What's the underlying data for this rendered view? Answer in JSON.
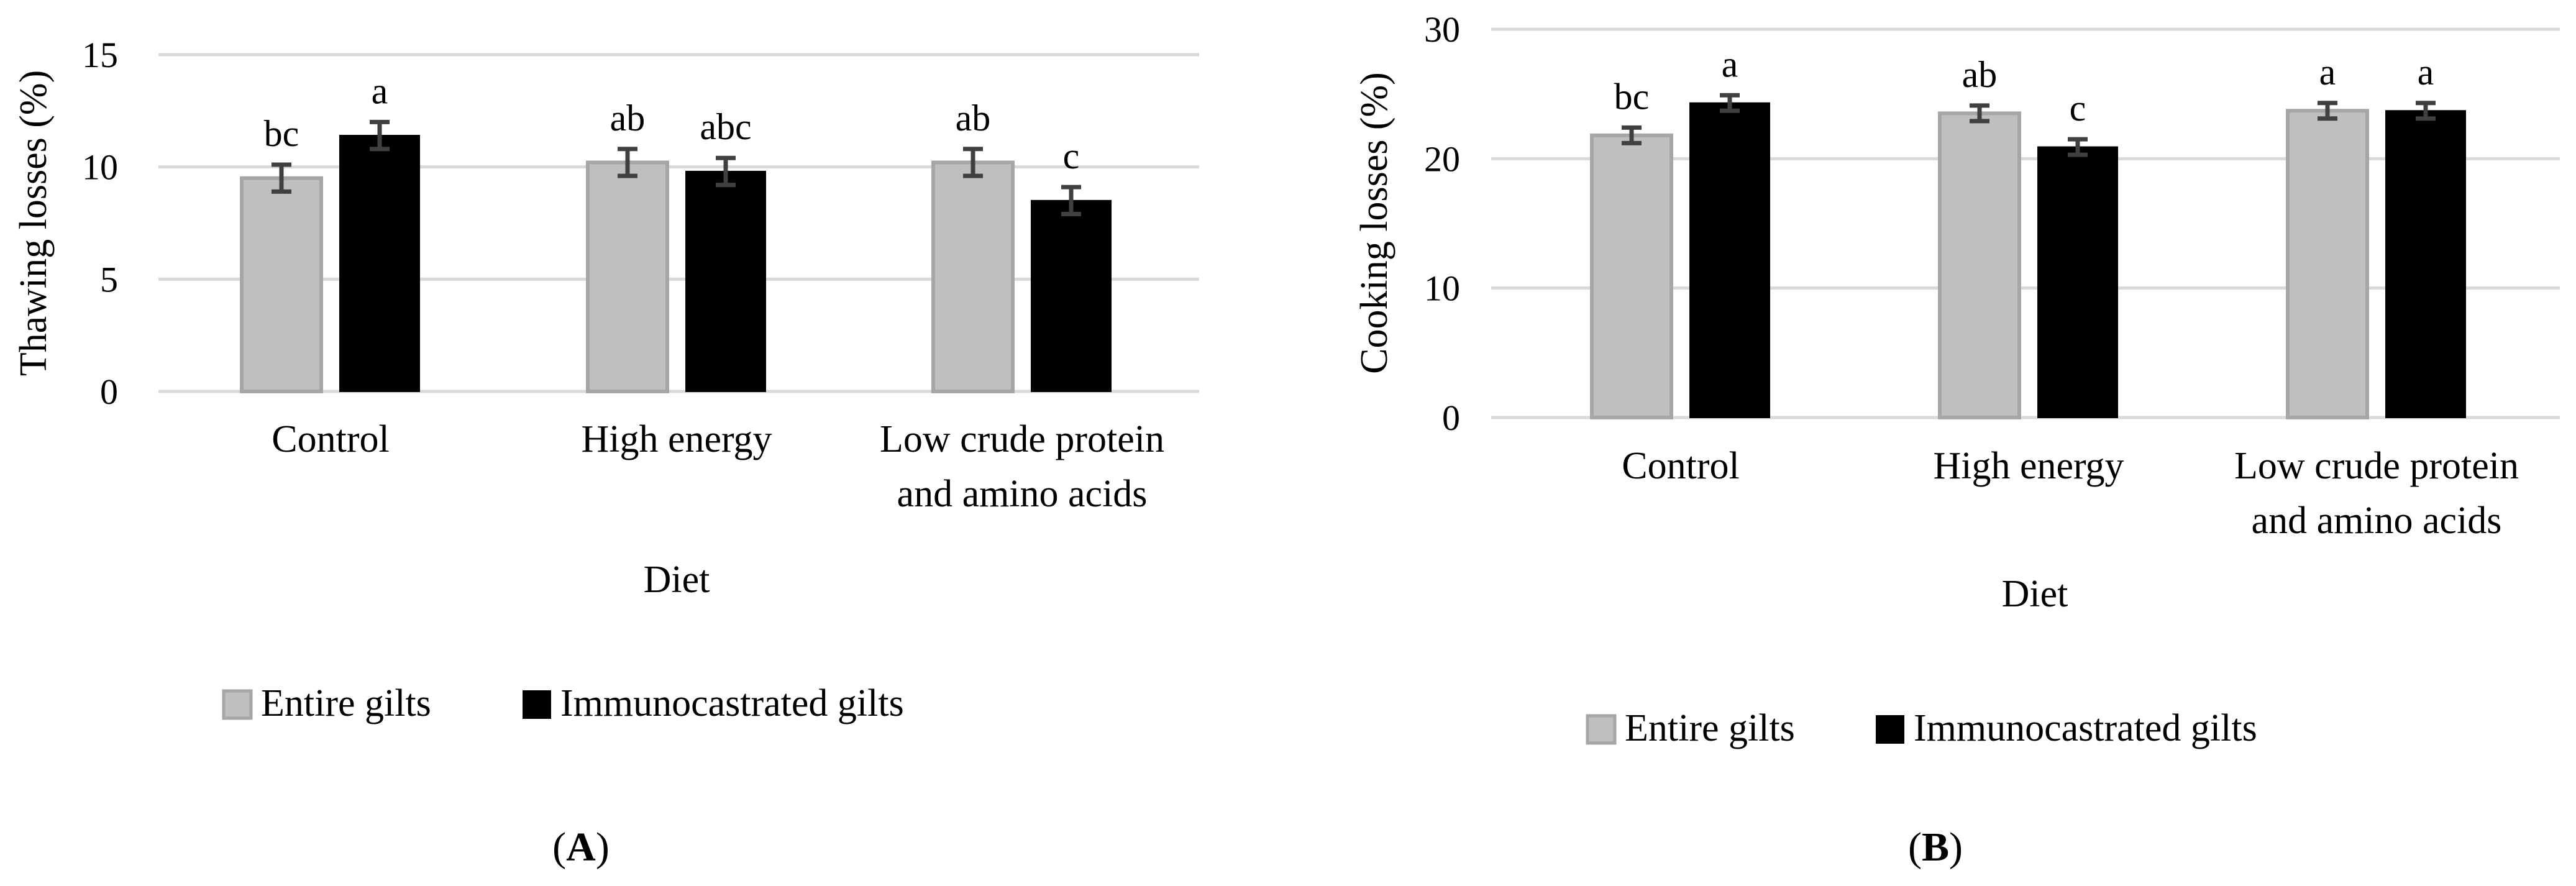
{
  "chart_data": [
    {
      "type": "bar",
      "panel_label": "A",
      "title": "",
      "xlabel": "Diet",
      "ylabel": "Thawing losses (%)",
      "ylim": [
        0,
        15
      ],
      "yticks": [
        "0",
        "5",
        "10",
        "15"
      ],
      "categories": [
        [
          "Control"
        ],
        [
          "High energy"
        ],
        [
          "Low crude protein",
          "and amino acids"
        ]
      ],
      "series": [
        {
          "name": "Entire gilts",
          "color": "#bfbfbf",
          "values": [
            9.5,
            10.2,
            10.2
          ],
          "errors": [
            0.6,
            0.6,
            0.6
          ],
          "letters": [
            "bc",
            "ab",
            "ab"
          ]
        },
        {
          "name": "Immunocastrated gilts",
          "color": "#000000",
          "values": [
            11.4,
            9.8,
            8.5
          ],
          "errors": [
            0.6,
            0.6,
            0.6
          ],
          "letters": [
            "a",
            "abc",
            "c"
          ]
        }
      ],
      "legend_position": "bottom"
    },
    {
      "type": "bar",
      "panel_label": "B",
      "title": "",
      "xlabel": "Diet",
      "ylabel": "Cooking losses (%)",
      "ylim": [
        0,
        30
      ],
      "yticks": [
        "0",
        "10",
        "20",
        "30"
      ],
      "categories": [
        [
          "Control"
        ],
        [
          "High energy"
        ],
        [
          "Low crude protein",
          "and amino acids"
        ]
      ],
      "series": [
        {
          "name": "Entire gilts",
          "color": "#bfbfbf",
          "values": [
            21.8,
            23.5,
            23.7
          ],
          "errors": [
            0.6,
            0.6,
            0.6
          ],
          "letters": [
            "bc",
            "ab",
            "a"
          ]
        },
        {
          "name": "Immunocastrated gilts",
          "color": "#000000",
          "values": [
            24.3,
            20.9,
            23.7
          ],
          "errors": [
            0.6,
            0.6,
            0.6
          ],
          "letters": [
            "a",
            "c",
            "a"
          ]
        }
      ],
      "legend_position": "bottom"
    }
  ]
}
